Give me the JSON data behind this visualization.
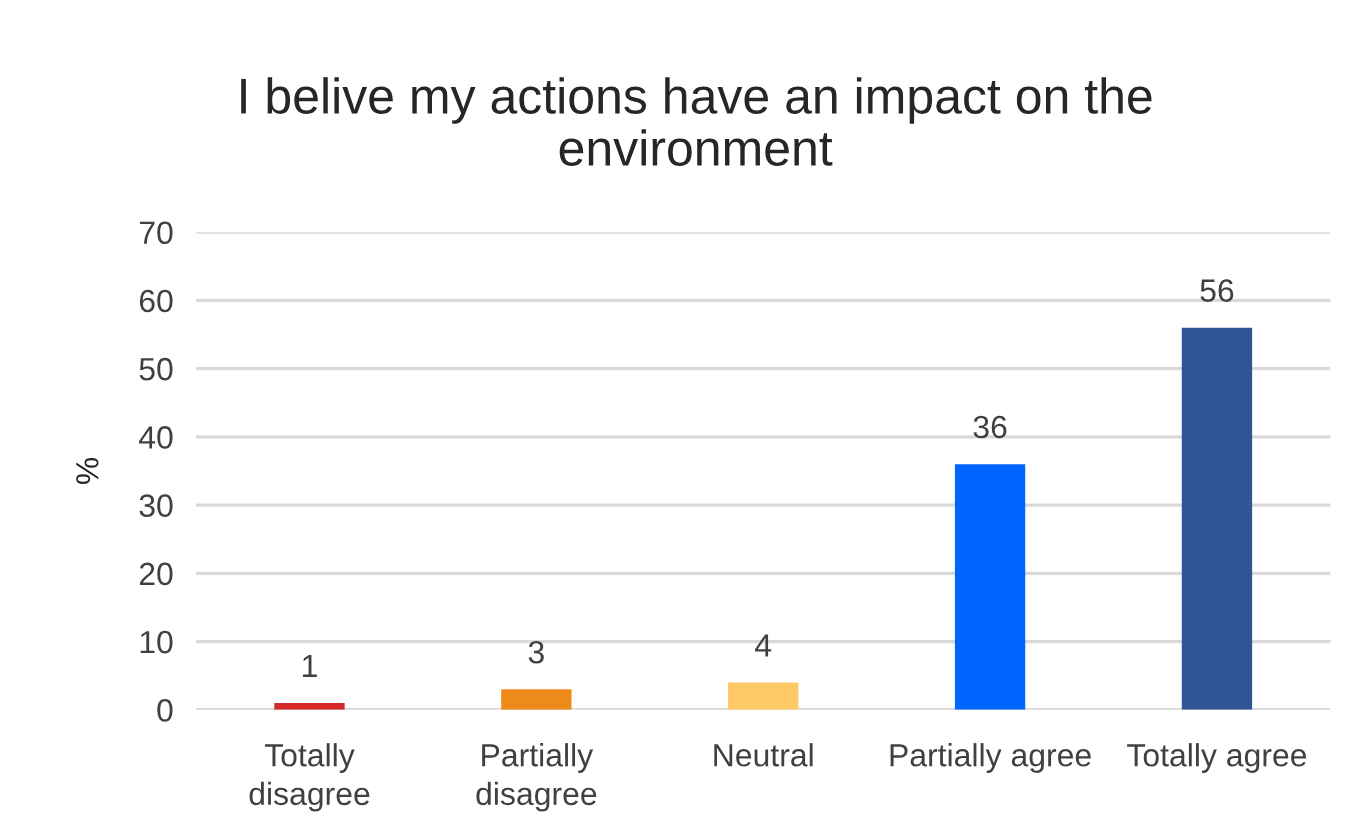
{
  "chart_data": {
    "type": "bar",
    "title": "I belive my actions have an impact on the\nenvironment",
    "ylabel": "%",
    "categories": [
      "Totally\ndisagree",
      "Partially\ndisagree",
      "Neutral",
      "Partially agree",
      "Totally agree"
    ],
    "values": [
      1,
      3,
      4,
      36,
      56
    ],
    "colors": [
      "#d42a2a",
      "#ee8a1a",
      "#ffc966",
      "#0066ff",
      "#2f5597"
    ],
    "ylim": [
      0,
      70
    ],
    "yticks": [
      0,
      10,
      20,
      30,
      40,
      50,
      60,
      70
    ],
    "grid": "y",
    "data_labels": true,
    "legend": false
  }
}
